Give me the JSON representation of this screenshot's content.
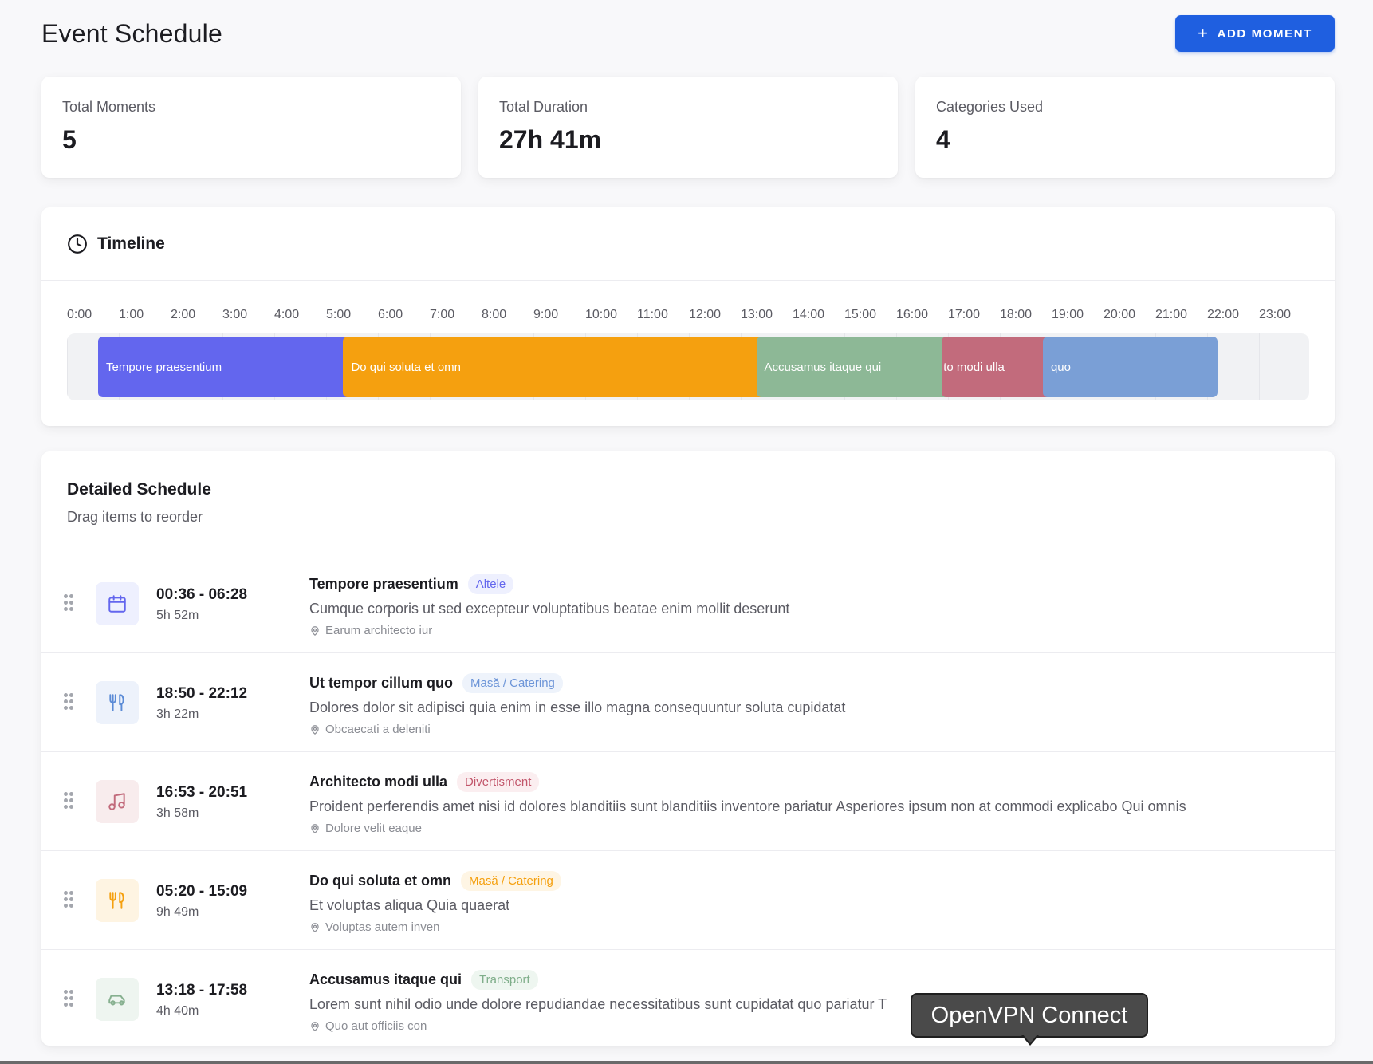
{
  "header": {
    "title": "Event Schedule",
    "add_button_label": "ADD MOMENT",
    "add_button_icon": "plus-icon"
  },
  "stats": [
    {
      "label": "Total Moments",
      "value": "5"
    },
    {
      "label": "Total Duration",
      "value": "27h 41m"
    },
    {
      "label": "Categories Used",
      "value": "4"
    }
  ],
  "timeline": {
    "title": "Timeline",
    "icon": "clock-icon",
    "hours": [
      "0:00",
      "1:00",
      "2:00",
      "3:00",
      "4:00",
      "5:00",
      "6:00",
      "7:00",
      "8:00",
      "9:00",
      "10:00",
      "11:00",
      "12:00",
      "13:00",
      "14:00",
      "15:00",
      "16:00",
      "17:00",
      "18:00",
      "19:00",
      "20:00",
      "21:00",
      "22:00",
      "23:00"
    ],
    "bars": [
      {
        "label": "Tempore praesentium",
        "start_hour": 0.6,
        "end_hour": 6.47,
        "color": "#6366ee"
      },
      {
        "label": "Do qui soluta et omn",
        "start_hour": 5.33,
        "end_hour": 15.15,
        "color": "#f5a00f"
      },
      {
        "label": "Accusamus itaque qui",
        "start_hour": 13.3,
        "end_hour": 17.97,
        "color": "#8db896"
      },
      {
        "label": "Architecto modi ulla",
        "start_hour": 16.88,
        "end_hour": 20.85,
        "color": "#c26b7c"
      },
      {
        "label": "Ut tempor cillum quo",
        "start_hour": 18.83,
        "end_hour": 22.2,
        "color": "#7a9fd6"
      }
    ]
  },
  "schedule": {
    "title": "Detailed Schedule",
    "subtitle": "Drag items to reorder",
    "items": [
      {
        "time": "00:36 - 06:28",
        "duration": "5h 52m",
        "title": "Tempore praesentium",
        "category": "Altele",
        "icon": "calendar-icon",
        "description": "Cumque corporis ut sed excepteur voluptatibus beatae enim mollit deserunt",
        "location": "Earum architecto iur",
        "icon_color": "#6366ee",
        "icon_bg": "#eef0fe",
        "badge_color": "#6366ee",
        "badge_bg": "#eef0fe"
      },
      {
        "time": "18:50 - 22:12",
        "duration": "3h 22m",
        "title": "Ut tempor cillum quo",
        "category": "Masă / Catering",
        "icon": "fork-knife-icon",
        "description": "Dolores dolor sit adipisci quia enim in esse illo magna consequuntur soluta cupidatat",
        "location": "Obcaecati a deleniti",
        "icon_color": "#5b8bd6",
        "icon_bg": "#edf2fb",
        "badge_color": "#6d95d8",
        "badge_bg": "#eef3fb"
      },
      {
        "time": "16:53 - 20:51",
        "duration": "3h 58m",
        "title": "Architecto modi ulla",
        "category": "Divertisment",
        "icon": "music-note-icon",
        "description": "Proident perferendis amet nisi id dolores blanditiis sunt blanditiis inventore pariatur Asperiores ipsum non at commodi explicabo Qui omnis",
        "location": "Dolore velit eaque",
        "icon_color": "#c26b7c",
        "icon_bg": "#f8eced",
        "badge_color": "#c2566b",
        "badge_bg": "#fbeef0"
      },
      {
        "time": "05:20 - 15:09",
        "duration": "9h 49m",
        "title": "Do qui soluta et omn",
        "category": "Masă / Catering",
        "icon": "fork-knife-icon",
        "description": "Et voluptas aliqua Quia quaerat",
        "location": "Voluptas autem inven",
        "icon_color": "#f5a00f",
        "icon_bg": "#fef4e2",
        "badge_color": "#f5a00f",
        "badge_bg": "#fef5e4"
      },
      {
        "time": "13:18 - 17:58",
        "duration": "4h 40m",
        "title": "Accusamus itaque qui",
        "category": "Transport",
        "icon": "car-icon",
        "description": "Lorem sunt nihil odio unde dolore repudiandae necessitatibus sunt cupidatat quo pariatur T",
        "location": "Quo aut officiis con",
        "icon_color": "#86b08f",
        "icon_bg": "#eef5f0",
        "badge_color": "#7fae8a",
        "badge_bg": "#eef6f0"
      }
    ]
  },
  "tooltip": {
    "text": "OpenVPN Connect"
  }
}
